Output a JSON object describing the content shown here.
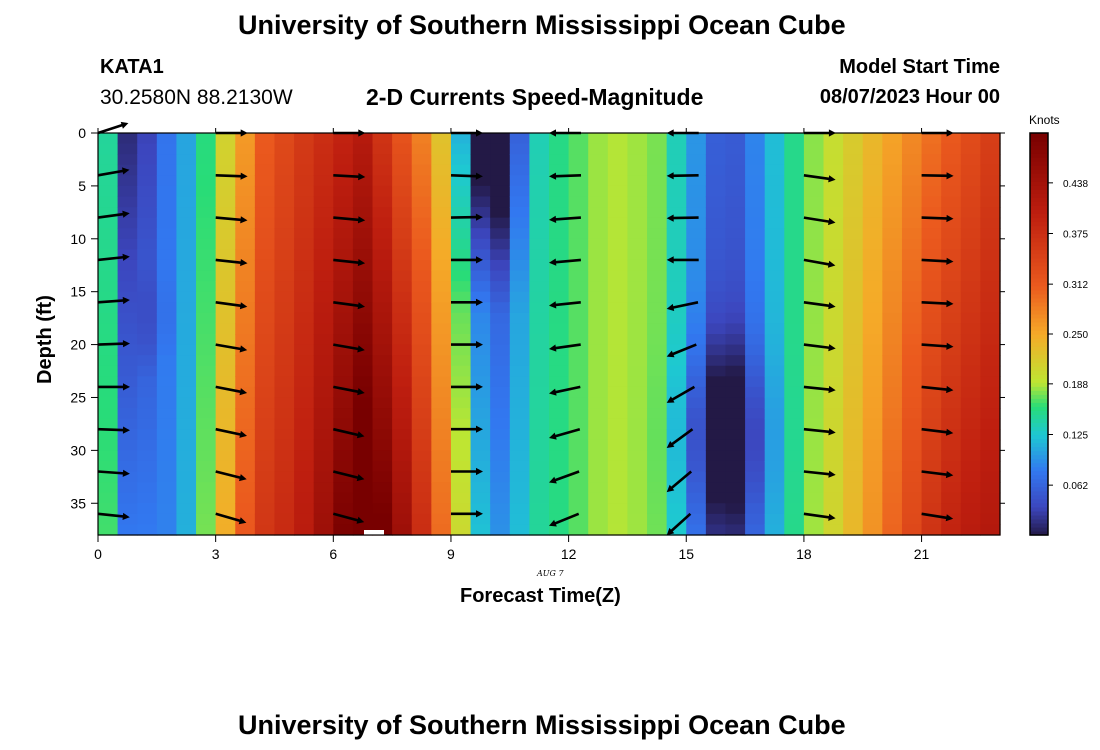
{
  "title_top": "University of Southern Mississippi Ocean Cube",
  "title_bottom": "University of Southern Mississippi Ocean Cube",
  "station": {
    "name": "KATA1",
    "coords": "30.2580N  88.2130W"
  },
  "plot_title": "2-D Currents Speed-Magnitude",
  "model_start": {
    "label": "Model Start Time",
    "value": "08/07/2023 Hour 00"
  },
  "chart_data": {
    "type": "heatmap",
    "title": "2-D Currents Speed-Magnitude",
    "xlabel": "Forecast Time(Z)",
    "ylabel": "Depth (ft)",
    "date_label": "AUG  7",
    "x_ticks": [
      0,
      3,
      6,
      9,
      12,
      15,
      18,
      21
    ],
    "x_tick_labels": [
      "0",
      "3",
      "6",
      "9",
      "12",
      "15",
      "18",
      "21"
    ],
    "xlim": [
      0,
      23
    ],
    "y_ticks": [
      0,
      5,
      10,
      15,
      20,
      25,
      30,
      35
    ],
    "y_tick_labels": [
      "0",
      "5",
      "10",
      "15",
      "20",
      "25",
      "30",
      "35"
    ],
    "ylim": [
      0,
      38
    ],
    "y_inverted": true,
    "colorbar": {
      "label": "Knots",
      "range": [
        0,
        0.5
      ],
      "ticks": [
        0.062,
        0.125,
        0.188,
        0.25,
        0.312,
        0.375,
        0.438
      ],
      "tick_labels": [
        "0.062",
        "0.125",
        "0.188",
        "0.250",
        "0.312",
        "0.375",
        "0.438"
      ]
    },
    "speed_profile_knots": [
      0.21,
      0.04,
      0.1,
      0.31,
      0.46,
      0.28,
      0.02,
      0.14,
      0.19,
      0.18,
      0.03,
      0.17,
      0.36
    ],
    "speed_time_hours": [
      0,
      0.8,
      2.2,
      4.2,
      6.8,
      8.6,
      10.0,
      11.2,
      13.0,
      14.2,
      16.0,
      18.0,
      23.0
    ],
    "depth_variation": {
      "column1_deep_minimum": 0.02,
      "hour10_surface_minimum": 0.005,
      "hour16_deep_minimum": 0.0,
      "hour6_deep_maximum": 0.5
    },
    "vectors": {
      "times": [
        0,
        3,
        6,
        9,
        11.5,
        14.5,
        18,
        21
      ],
      "depths": [
        0,
        4,
        8,
        12,
        16,
        20,
        24,
        28,
        32,
        36
      ],
      "angles_deg": [
        [
          -18,
          -10,
          -8,
          -6,
          -4,
          -2,
          0,
          2,
          4,
          6
        ],
        [
          0,
          2,
          5,
          6,
          8,
          10,
          11,
          12,
          14,
          16
        ],
        [
          0,
          3,
          5,
          6,
          8,
          10,
          11,
          13,
          14,
          15
        ],
        [
          0,
          2,
          -1,
          0,
          0,
          0,
          0,
          0,
          0,
          0
        ],
        [
          180,
          178,
          176,
          175,
          174,
          172,
          168,
          164,
          160,
          158
        ],
        [
          180,
          179,
          179,
          180,
          168,
          158,
          150,
          144,
          140,
          138
        ],
        [
          0,
          8,
          9,
          10,
          8,
          7,
          6,
          6,
          6,
          8
        ],
        [
          0,
          1,
          2,
          3,
          3,
          4,
          6,
          7,
          7,
          9
        ]
      ]
    }
  }
}
